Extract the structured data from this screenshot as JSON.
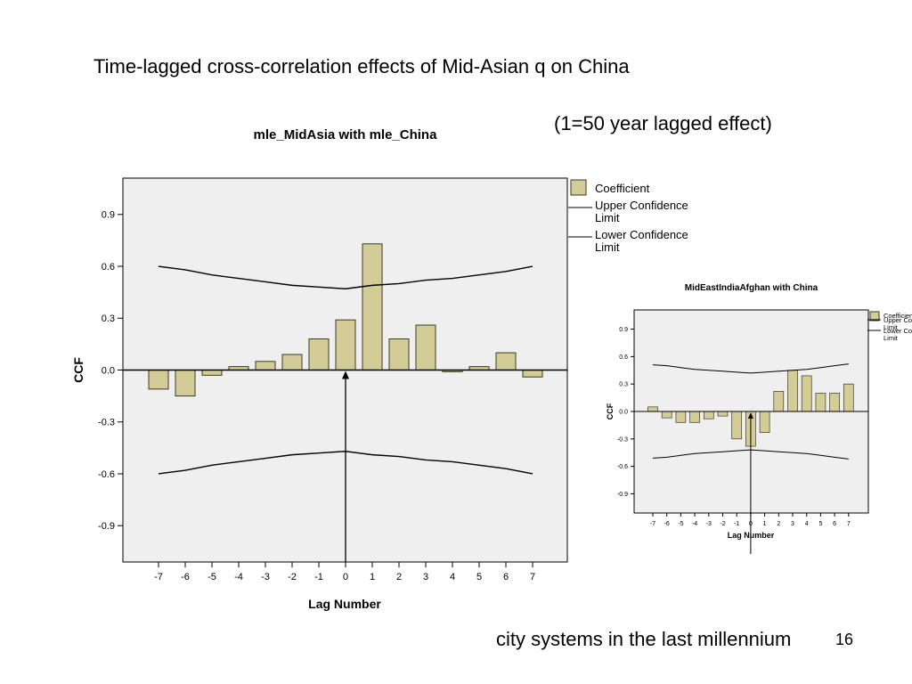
{
  "slide": {
    "title": "Time-lagged cross-correlation effects of Mid-Asian q on China",
    "subtitle": "(1=50 year lagged effect)",
    "footer": "city systems in the last millennium",
    "page_number": "16"
  },
  "colors": {
    "bar_fill": "#d4cc96",
    "bar_stroke": "#3a3a20",
    "plot_bg": "#efefef",
    "confidence_line": "#000000"
  },
  "chart_data": [
    {
      "type": "bar",
      "title": "mle_MidAsia with mle_China",
      "xlabel": "Lag Number",
      "ylabel": "CCF",
      "categories": [
        "-7",
        "-6",
        "-5",
        "-4",
        "-3",
        "-2",
        "-1",
        "0",
        "1",
        "2",
        "3",
        "4",
        "5",
        "6",
        "7"
      ],
      "yticks": [
        "0.9",
        "0.6",
        "0.3",
        "0.0",
        "-0.3",
        "-0.6",
        "-0.9"
      ],
      "ylim": [
        -1.11,
        1.11
      ],
      "series": [
        {
          "name": "Coefficient",
          "values": [
            -0.11,
            -0.15,
            -0.03,
            0.02,
            0.05,
            0.09,
            0.18,
            0.29,
            0.73,
            0.18,
            0.26,
            -0.01,
            0.02,
            0.1,
            -0.04
          ]
        },
        {
          "name": "Upper Confidence Limit",
          "values": [
            0.6,
            0.58,
            0.55,
            0.53,
            0.51,
            0.49,
            0.48,
            0.47,
            0.49,
            0.5,
            0.52,
            0.53,
            0.55,
            0.57,
            0.6
          ]
        },
        {
          "name": "Lower Confidence Limit",
          "values": [
            -0.6,
            -0.58,
            -0.55,
            -0.53,
            -0.51,
            -0.49,
            -0.48,
            -0.47,
            -0.49,
            -0.5,
            -0.52,
            -0.53,
            -0.55,
            -0.57,
            -0.6
          ]
        }
      ],
      "legend": {
        "position": "right",
        "items": [
          {
            "line1": "Coefficient",
            "line2": ""
          },
          {
            "line1": "Upper Confidence",
            "line2": "Limit"
          },
          {
            "line1": "Lower Confidence",
            "line2": "Limit"
          }
        ]
      },
      "grid": false,
      "annotation": "arrow pointing to lag 0"
    },
    {
      "type": "bar",
      "title": "MidEastIndiaAfghan with China",
      "xlabel": "Lag Number",
      "ylabel": "CCF",
      "categories": [
        "-7",
        "-6",
        "-5",
        "-4",
        "-3",
        "-2",
        "-1",
        "0",
        "1",
        "2",
        "3",
        "4",
        "5",
        "6",
        "7"
      ],
      "yticks": [
        "0.9",
        "0.6",
        "0.3",
        "0.0",
        "-0.3",
        "-0.6",
        "-0.9"
      ],
      "ylim": [
        -1.11,
        1.11
      ],
      "series": [
        {
          "name": "Coefficient",
          "values": [
            0.05,
            -0.07,
            -0.12,
            -0.12,
            -0.08,
            -0.05,
            -0.3,
            -0.38,
            -0.23,
            0.22,
            0.45,
            0.39,
            0.2,
            0.2,
            0.3
          ]
        },
        {
          "name": "Upper Confidence Limit",
          "values": [
            0.51,
            0.5,
            0.48,
            0.46,
            0.45,
            0.44,
            0.43,
            0.42,
            0.43,
            0.44,
            0.45,
            0.46,
            0.48,
            0.5,
            0.52
          ]
        },
        {
          "name": "Lower Confidence Limit",
          "values": [
            -0.51,
            -0.5,
            -0.48,
            -0.46,
            -0.45,
            -0.44,
            -0.43,
            -0.42,
            -0.43,
            -0.44,
            -0.45,
            -0.46,
            -0.48,
            -0.5,
            -0.52
          ]
        }
      ],
      "legend": {
        "position": "right",
        "items": [
          {
            "line1": "Coefficient",
            "line2": ""
          },
          {
            "line1": "Upper Co",
            "line2": "Limit"
          },
          {
            "line1": "Lower Co",
            "line2": "Limit"
          }
        ]
      },
      "grid": false,
      "annotation": "arrow pointing to lag 0"
    }
  ]
}
